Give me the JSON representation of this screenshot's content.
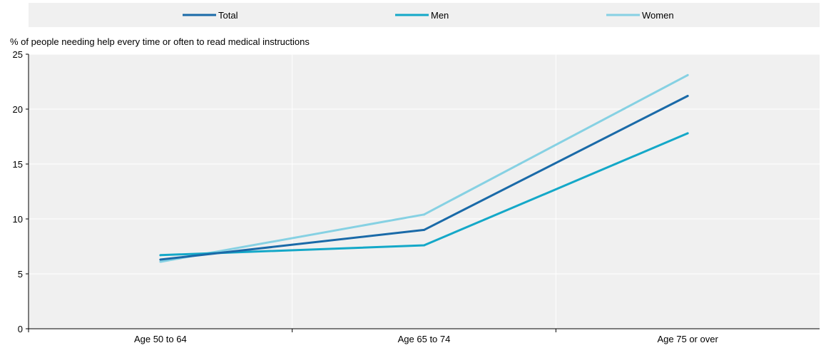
{
  "chart_data": {
    "type": "line",
    "title": "",
    "ylabel": "% of people needing help every time or often to read medical instructions",
    "xlabel": "",
    "categories": [
      "Age 50 to 64",
      "Age 65 to 74",
      "Age 75 or over"
    ],
    "ylim": [
      0,
      25
    ],
    "yticks": [
      0,
      5,
      10,
      15,
      20,
      25
    ],
    "grid": true,
    "legend_position": "top",
    "series": [
      {
        "name": "Total",
        "color": "#1a6aa8",
        "values": [
          6.3,
          9.0,
          21.2
        ]
      },
      {
        "name": "Men",
        "color": "#14a8c8",
        "values": [
          6.7,
          7.6,
          17.8
        ]
      },
      {
        "name": "Women",
        "color": "#86d1e3",
        "values": [
          6.1,
          10.4,
          23.1
        ]
      }
    ]
  }
}
